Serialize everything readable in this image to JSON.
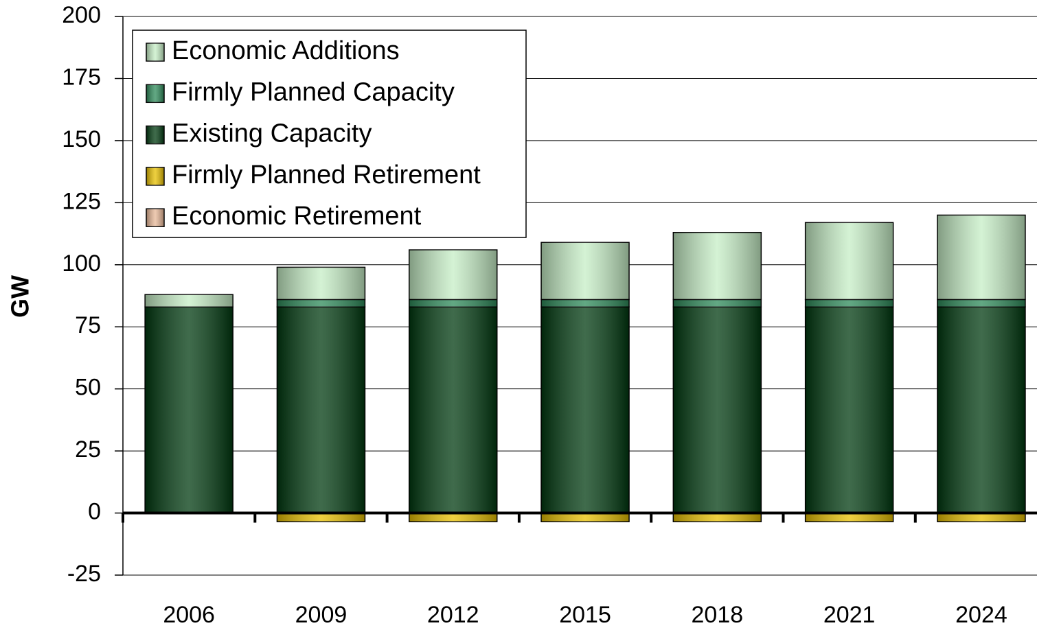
{
  "chart_data": {
    "type": "stacked_bar",
    "y_label": "GW",
    "categories": [
      "2006",
      "2009",
      "2012",
      "2015",
      "2018",
      "2021",
      "2024"
    ],
    "series": [
      {
        "name": "Economic Additions",
        "color": "#c6eec6",
        "values": [
          5,
          13,
          20,
          23,
          27,
          31,
          34
        ]
      },
      {
        "name": "Firmly Planned Capacity",
        "color": "#2e8b5a",
        "values": [
          0,
          3,
          3,
          3,
          3,
          3,
          3
        ]
      },
      {
        "name": "Existing Capacity",
        "color": "#003a10",
        "values": [
          83,
          83,
          83,
          83,
          83,
          83,
          83
        ]
      },
      {
        "name": "Firmly Planned Retirement",
        "color": "#e8c000",
        "values": [
          0,
          -3.5,
          -3.5,
          -3.5,
          -3.5,
          -3.5,
          -3.5
        ]
      },
      {
        "name": "Economic Retirement",
        "color": "#e8b898",
        "values": [
          0,
          0,
          0,
          0,
          0,
          0,
          0
        ]
      }
    ],
    "ylim": [
      -25,
      200
    ],
    "yticks": [
      -25,
      0,
      25,
      50,
      75,
      100,
      125,
      150,
      175,
      200
    ],
    "grid": true
  }
}
